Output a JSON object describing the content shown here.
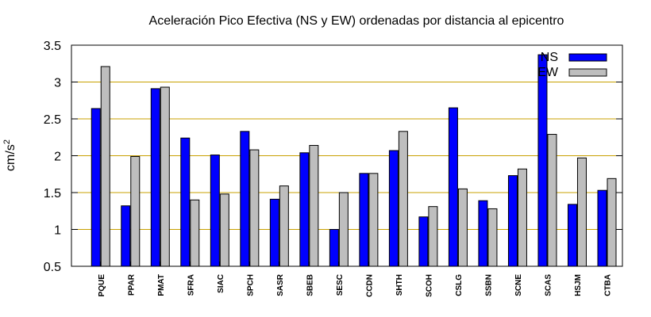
{
  "chart_data": {
    "type": "bar",
    "title": "Aceleración Pico Efectiva (NS y EW) ordenadas por distancia al epicentro",
    "xlabel": "",
    "ylabel": "cm/s",
    "ylabel_superscript": "2",
    "ylim": [
      0.5,
      3.5
    ],
    "yticks": [
      "0.5",
      "1",
      "1.5",
      "2",
      "2.5",
      "3",
      "3.5"
    ],
    "grid": "horizontal",
    "legend_position": "top-right",
    "categories": [
      "PQUE",
      "PPAR",
      "PMAT",
      "SFRA",
      "SIAC",
      "SPCH",
      "SASR",
      "SBEB",
      "SESC",
      "CCDN",
      "SHTH",
      "SCOH",
      "CSLG",
      "SSBN",
      "SCNE",
      "SCAS",
      "HSJM",
      "CTBA"
    ],
    "series": [
      {
        "name": "NS",
        "color": "#0000ff",
        "values": [
          2.64,
          1.32,
          2.91,
          2.24,
          2.01,
          2.33,
          1.41,
          2.04,
          1.0,
          1.76,
          2.07,
          1.17,
          2.65,
          1.39,
          1.73,
          3.37,
          1.34,
          1.53
        ]
      },
      {
        "name": "EW",
        "color": "#bebebe",
        "values": [
          3.21,
          1.99,
          2.93,
          1.4,
          1.48,
          2.08,
          1.59,
          2.14,
          1.5,
          1.76,
          2.33,
          1.31,
          1.55,
          1.28,
          1.82,
          2.29,
          1.97,
          1.69
        ]
      }
    ],
    "gridline_color": "#c8a000"
  }
}
